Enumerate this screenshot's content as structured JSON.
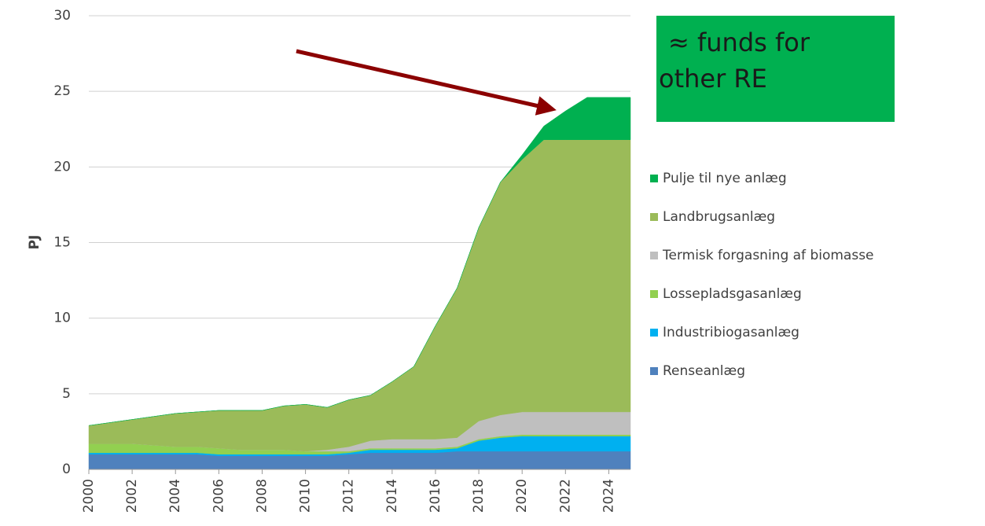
{
  "chart_data": {
    "type": "stacked_area",
    "y_label": "PJ",
    "x": [
      2000,
      2001,
      2002,
      2003,
      2004,
      2005,
      2006,
      2007,
      2008,
      2009,
      2010,
      2011,
      2012,
      2013,
      2014,
      2015,
      2016,
      2017,
      2018,
      2019,
      2020,
      2021,
      2022,
      2023,
      2024,
      2025
    ],
    "xlim": [
      2000,
      2025
    ],
    "xticks": [
      2000,
      2002,
      2004,
      2006,
      2008,
      2010,
      2012,
      2014,
      2016,
      2018,
      2020,
      2022,
      2024
    ],
    "ylim": [
      0,
      30
    ],
    "yticks": [
      0,
      5,
      10,
      15,
      20,
      25,
      30
    ],
    "grid": true,
    "series": [
      {
        "name": "Renseanlæg",
        "color": "#4f81bd",
        "values": [
          1.0,
          1.0,
          1.0,
          1.0,
          1.0,
          1.0,
          0.9,
          0.9,
          0.9,
          0.9,
          0.9,
          0.9,
          1.0,
          1.1,
          1.1,
          1.1,
          1.1,
          1.2,
          1.2,
          1.2,
          1.2,
          1.2,
          1.2,
          1.2,
          1.2,
          1.2
        ]
      },
      {
        "name": "Industribiogasanlæg",
        "color": "#00b0f0",
        "values": [
          0.1,
          0.1,
          0.1,
          0.1,
          0.1,
          0.1,
          0.1,
          0.1,
          0.1,
          0.1,
          0.1,
          0.1,
          0.1,
          0.2,
          0.2,
          0.2,
          0.2,
          0.2,
          0.7,
          0.9,
          1.0,
          1.0,
          1.0,
          1.0,
          1.0,
          1.0
        ]
      },
      {
        "name": "Lossepladsgasanlæg",
        "color": "#92d050",
        "values": [
          0.6,
          0.6,
          0.6,
          0.5,
          0.4,
          0.4,
          0.4,
          0.3,
          0.3,
          0.3,
          0.2,
          0.2,
          0.1,
          0.1,
          0.1,
          0.1,
          0.1,
          0.1,
          0.1,
          0.1,
          0.1,
          0.1,
          0.1,
          0.1,
          0.1,
          0.1
        ]
      },
      {
        "name": "Termisk forgasning af biomasse",
        "color": "#bfbfbf",
        "values": [
          0,
          0,
          0,
          0,
          0,
          0,
          0,
          0,
          0,
          0,
          0,
          0.1,
          0.3,
          0.5,
          0.6,
          0.6,
          0.6,
          0.6,
          1.2,
          1.4,
          1.5,
          1.5,
          1.5,
          1.5,
          1.5,
          1.5
        ]
      },
      {
        "name": "Landbrugsanlæg",
        "color": "#9bbb59",
        "values": [
          1.2,
          1.4,
          1.6,
          1.9,
          2.2,
          2.3,
          2.5,
          2.6,
          2.6,
          2.9,
          3.1,
          2.8,
          3.1,
          3.0,
          3.8,
          4.8,
          7.5,
          9.9,
          12.8,
          15.4,
          16.7,
          18.0,
          18.0,
          18.0,
          18.0,
          18.0
        ]
      },
      {
        "name": "Pulje til nye anlæg",
        "color": "#00b050",
        "values": [
          0,
          0,
          0,
          0,
          0,
          0,
          0,
          0,
          0,
          0,
          0,
          0,
          0,
          0,
          0,
          0,
          0,
          0,
          0,
          0,
          0.3,
          0.9,
          1.9,
          2.8,
          2.8,
          2.8
        ]
      }
    ],
    "annotation": {
      "lines": [
        "≈ funds for",
        "other RE"
      ],
      "color": "#00b050"
    }
  }
}
